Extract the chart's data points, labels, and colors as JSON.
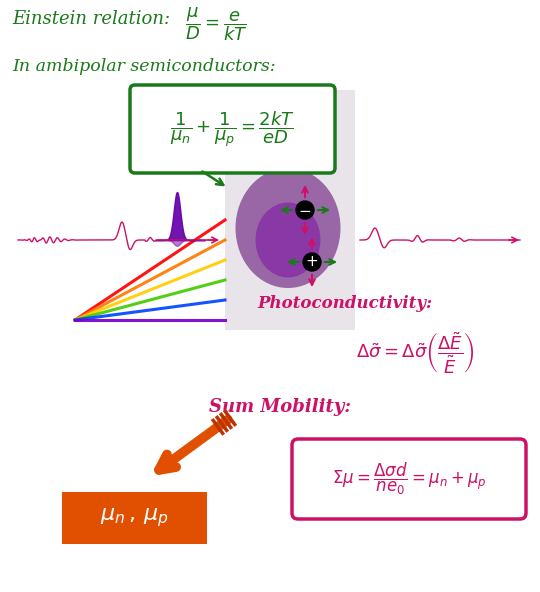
{
  "bg_color": "#ffffff",
  "green_color": "#1a7a1a",
  "magenta_color": "#cc1166",
  "orange_color": "#e05000",
  "einstein_label": "Einstein relation:",
  "einstein_formula": "$\\dfrac{\\mu}{D} = \\dfrac{e}{kT}$",
  "ambipolar_label": "In ambipolar semiconductors:",
  "ambipolar_formula": "$\\dfrac{1}{\\mu_n} + \\dfrac{1}{\\mu_p} = \\dfrac{2kT}{eD}$",
  "photoconductivity_label": "Photoconductivity:",
  "photoconductivity_formula": "$\\Delta\\tilde{\\sigma} = \\Delta\\tilde{\\sigma}\\left(\\dfrac{\\Delta\\tilde{E}}{\\tilde{E}}\\right)$",
  "sum_mobility_label": "Sum Mobility:",
  "sum_mobility_formula": "$\\Sigma\\mu = \\dfrac{\\Delta\\sigma d}{ne_0} = \\mu_n + \\mu_p$",
  "result_box_formula": "$\\mu_n\\,,\\,\\mu_p$",
  "band_color": "#c8bcc8",
  "band_alpha": 0.4,
  "glow_color1": "#5a0070",
  "glow_color2": "#7a00aa",
  "spike_color": "#6600aa",
  "spec_colors": [
    "#ff0000",
    "#ff7700",
    "#ffcc00",
    "#44cc00",
    "#0044ff",
    "#7700cc"
  ]
}
